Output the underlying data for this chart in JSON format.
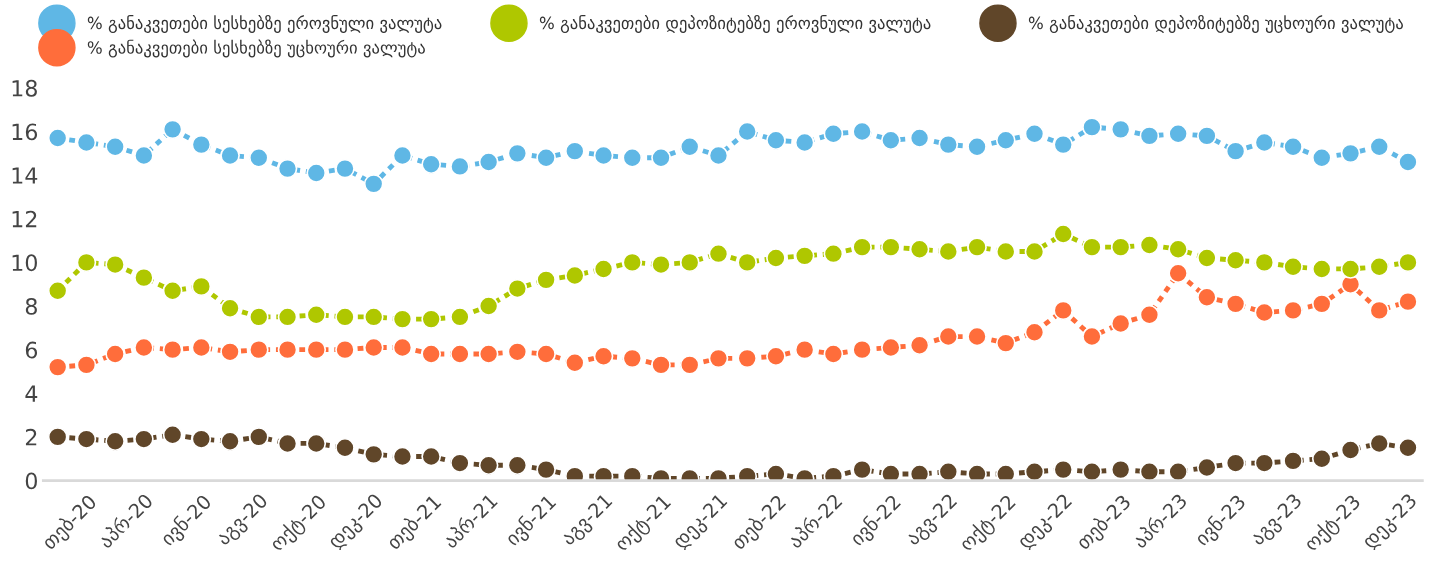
{
  "chart_data": {
    "type": "line",
    "categories": [
      null,
      "თებ-20",
      null,
      "აპრ-20",
      null,
      "ივნ-20",
      null,
      "აგვ-20",
      null,
      "ოქტ-20",
      null,
      "დეკ-20",
      null,
      "თებ-21",
      null,
      "აპრ-21",
      null,
      "ივნ-21",
      null,
      "აგვ-21",
      null,
      "ოქტ-21",
      null,
      "დეკ-21",
      null,
      "თებ-22",
      null,
      "აპრ-22",
      null,
      "ივნ-22",
      null,
      "აგვ-22",
      null,
      "ოქტ-22",
      null,
      "დეკ-22",
      null,
      "თებ-23",
      null,
      "აპრ-23",
      null,
      "ივნ-23",
      null,
      "აგვ-23",
      null,
      "ოქტ-23",
      null,
      "დეკ-23"
    ],
    "series": [
      {
        "name": "% განაკვეთები სესხებზე ეროვნული ვალუტა",
        "color": "#5fb7e5",
        "values": [
          15.7,
          15.5,
          15.3,
          14.9,
          16.1,
          15.4,
          14.9,
          14.8,
          14.3,
          14.1,
          14.3,
          13.6,
          14.9,
          14.5,
          14.4,
          14.6,
          15.0,
          14.8,
          15.1,
          14.9,
          14.8,
          14.8,
          15.3,
          14.9,
          16.0,
          15.6,
          15.5,
          15.9,
          16.0,
          15.6,
          15.7,
          15.4,
          15.3,
          15.6,
          15.9,
          15.4,
          16.2,
          16.1,
          15.8,
          15.9,
          15.8,
          15.1,
          15.5,
          15.3,
          14.8,
          15.0,
          15.3,
          14.6
        ]
      },
      {
        "name": "% განაკვეთები სესხებზე უცხოური ვალუტა",
        "color": "#ff6d3b",
        "values": [
          5.2,
          5.3,
          5.8,
          6.1,
          6.0,
          6.1,
          5.9,
          6.0,
          6.0,
          6.0,
          6.0,
          6.1,
          6.1,
          5.8,
          5.8,
          5.8,
          5.9,
          5.8,
          5.4,
          5.7,
          5.6,
          5.3,
          5.3,
          5.6,
          5.6,
          5.7,
          6.0,
          5.8,
          6.0,
          6.1,
          6.2,
          6.6,
          6.6,
          6.3,
          6.8,
          7.8,
          6.6,
          7.2,
          7.6,
          9.5,
          8.4,
          8.1,
          7.7,
          7.8,
          8.1,
          9.0,
          7.8,
          8.2
        ]
      },
      {
        "name": "% განაკვეთები დეპოზიტებზე ეროვნული ვალუტა",
        "color": "#afc700",
        "values": [
          8.7,
          10.0,
          9.9,
          9.3,
          8.7,
          8.9,
          7.9,
          7.5,
          7.5,
          7.6,
          7.5,
          7.5,
          7.4,
          7.4,
          7.5,
          8.0,
          8.8,
          9.2,
          9.4,
          9.7,
          10.0,
          9.9,
          10.0,
          10.4,
          10.0,
          10.2,
          10.3,
          10.4,
          10.7,
          10.7,
          10.6,
          10.5,
          10.7,
          10.5,
          10.5,
          11.3,
          10.7,
          10.7,
          10.8,
          10.6,
          10.2,
          10.1,
          10.0,
          9.8,
          9.7,
          9.7,
          9.8,
          10.0
        ]
      },
      {
        "name": "% განაკვეთები დეპოზიტებზე უცხოური ვალუტა",
        "color": "#604629",
        "values": [
          2.0,
          1.9,
          1.8,
          1.9,
          2.1,
          1.9,
          1.8,
          2.0,
          1.7,
          1.7,
          1.5,
          1.2,
          1.1,
          1.1,
          0.8,
          0.7,
          0.7,
          0.5,
          0.2,
          0.2,
          0.2,
          0.1,
          0.1,
          0.1,
          0.2,
          0.3,
          0.1,
          0.2,
          0.5,
          0.3,
          0.3,
          0.4,
          0.3,
          0.3,
          0.4,
          0.5,
          0.4,
          0.5,
          0.4,
          0.4,
          0.6,
          0.8,
          0.8,
          0.9,
          1.0,
          1.4,
          1.7,
          1.5
        ]
      }
    ],
    "ylim": [
      0,
      18
    ],
    "yticks": [
      0,
      2,
      4,
      6,
      8,
      10,
      12,
      14,
      16,
      18
    ],
    "grid": false,
    "legend": "top",
    "marker": "circle",
    "line_style": "dashed"
  }
}
